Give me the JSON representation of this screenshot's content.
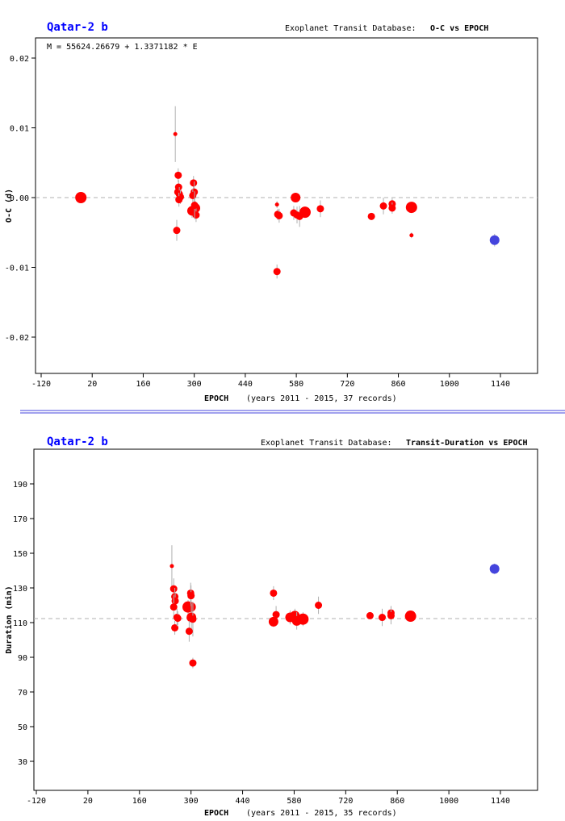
{
  "chart_data": [
    {
      "type": "scatter",
      "planet": "Qatar-2 b",
      "db_label": "Exoplanet Transit Database:",
      "title": "O-C vs EPOCH",
      "formula": "M = 55624.26679 + 1.3371182 * E",
      "ylabel": "O-C (d)",
      "xlabel": "EPOCH",
      "xnote": "(years 2011 - 2015, 37 records)",
      "xlim": [
        -135,
        1240
      ],
      "ylim": [
        -0.025,
        0.0225
      ],
      "xticks": [
        "-120",
        "20",
        "160",
        "300",
        "440",
        "580",
        "720",
        "860",
        "1000",
        "1140"
      ],
      "yticks": [
        "0.02",
        "0.01",
        "0.00",
        "-0.01",
        "-0.02"
      ],
      "reference": 0,
      "points": [
        [
          -11,
          0,
          0.0005,
          4
        ],
        [
          248,
          0.0091,
          0.004,
          1
        ],
        [
          256,
          0.0032,
          0.001,
          2
        ],
        [
          252,
          -0.0047,
          0.0015,
          2
        ],
        [
          255,
          0.0008,
          0.001,
          2
        ],
        [
          257,
          0.0015,
          0.001,
          2
        ],
        [
          259,
          0.0005,
          0.001,
          2
        ],
        [
          262,
          0.0001,
          0.001,
          2
        ],
        [
          258,
          -0.0003,
          0.001,
          2
        ],
        [
          298,
          0.0021,
          0.001,
          2
        ],
        [
          300,
          0.0008,
          0.0015,
          2
        ],
        [
          296,
          0.0003,
          0.001,
          2
        ],
        [
          294,
          -0.0019,
          0.001,
          3
        ],
        [
          303,
          -0.0015,
          0.001,
          3
        ],
        [
          305,
          -0.0025,
          0.001,
          2
        ],
        [
          301,
          -0.0011,
          0.002,
          2
        ],
        [
          527,
          -0.001,
          0.0005,
          1
        ],
        [
          527,
          -0.0106,
          0.001,
          2
        ],
        [
          529,
          -0.0024,
          0.0008,
          2
        ],
        [
          533,
          -0.0026,
          0.001,
          2
        ],
        [
          578,
          0,
          0.0006,
          3
        ],
        [
          573,
          -0.0022,
          0.001,
          2
        ],
        [
          582,
          -0.0025,
          0.0012,
          2
        ],
        [
          589,
          -0.0027,
          0.0015,
          2
        ],
        [
          604,
          -0.0021,
          0.0008,
          4
        ],
        [
          646,
          -0.0016,
          0.0012,
          2
        ],
        [
          786,
          -0.0027,
          0.0005,
          2
        ],
        [
          819,
          -0.0012,
          0.0012,
          2
        ],
        [
          843,
          -0.0009,
          0.0008,
          2
        ],
        [
          843,
          -0.0015,
          0.0008,
          2
        ],
        [
          896,
          -0.0014,
          0.0006,
          4
        ],
        [
          896,
          -0.0054,
          0.0004,
          1
        ]
      ],
      "highlight_points": [
        [
          1124,
          -0.0061,
          0.0009,
          3
        ]
      ]
    },
    {
      "type": "scatter",
      "planet": "Qatar-2 b",
      "db_label": "Exoplanet Transit Database:",
      "title": "Transit-Duration vs EPOCH",
      "ylabel": "Duration (min)",
      "xlabel": "EPOCH",
      "xnote": "(years 2011 - 2015, 35 records)",
      "xlim": [
        -135,
        1240
      ],
      "ylim": [
        10,
        208
      ],
      "xticks": [
        "-120",
        "20",
        "160",
        "300",
        "440",
        "580",
        "720",
        "860",
        "1000",
        "1140"
      ],
      "yticks": [
        "190",
        "170",
        "150",
        "130",
        "110",
        "90",
        "70",
        "50",
        "30"
      ],
      "reference": 112.3,
      "points": [
        [
          248,
          142.6,
          12,
          1
        ],
        [
          253,
          129.5,
          6,
          2
        ],
        [
          256,
          125,
          5,
          2
        ],
        [
          257,
          122.5,
          5,
          2
        ],
        [
          253,
          119,
          7,
          2
        ],
        [
          256,
          107,
          4,
          2
        ],
        [
          262,
          113,
          5,
          2
        ],
        [
          264,
          112.5,
          4,
          2
        ],
        [
          292,
          119,
          4,
          4
        ],
        [
          300,
          119,
          5,
          3
        ],
        [
          299,
          127,
          6,
          2
        ],
        [
          300,
          125.5,
          6,
          2
        ],
        [
          301,
          113,
          8,
          3
        ],
        [
          305,
          112,
          10,
          2
        ],
        [
          295,
          105,
          6,
          2
        ],
        [
          305,
          86.7,
          3,
          2
        ],
        [
          524,
          127,
          4,
          2
        ],
        [
          531,
          114.6,
          5,
          2
        ],
        [
          524,
          110.5,
          3,
          3
        ],
        [
          569,
          113,
          4,
          3
        ],
        [
          582,
          114,
          4,
          3
        ],
        [
          587,
          111,
          5,
          3
        ],
        [
          604,
          112,
          4,
          4
        ],
        [
          646,
          120,
          5,
          2
        ],
        [
          786,
          114,
          2,
          2
        ],
        [
          819,
          113,
          5,
          2
        ],
        [
          843,
          115.6,
          4,
          2
        ],
        [
          843,
          114,
          5,
          2
        ],
        [
          896,
          113.7,
          2,
          4
        ]
      ],
      "highlight_points": [
        [
          1124,
          141,
          3,
          3
        ]
      ]
    }
  ],
  "colors": {
    "points": "#ff0000",
    "highlight": "#4444dd",
    "errbar": "#b0b0b0",
    "refline": "#b0b0b0",
    "title": "#0000ff"
  }
}
